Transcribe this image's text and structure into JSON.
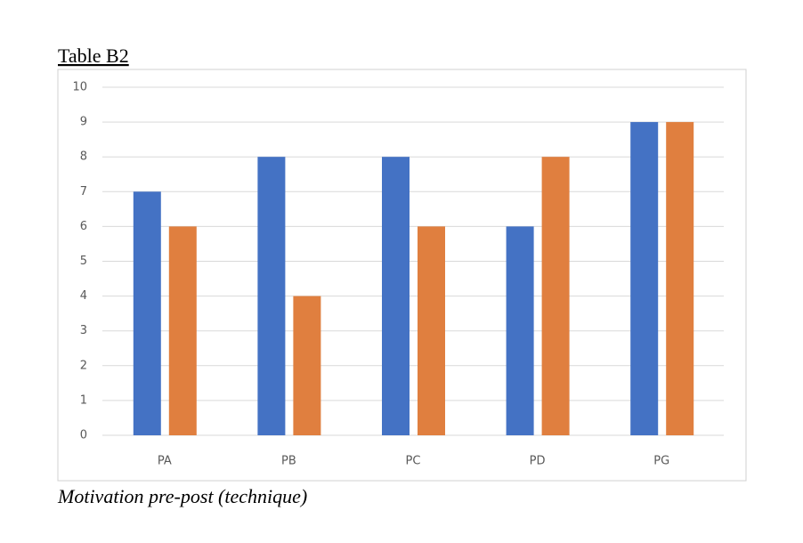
{
  "chart_data": {
    "type": "bar",
    "title": "Table B2",
    "caption": "Motivation pre-post (technique)",
    "categories": [
      "PA",
      "PB",
      "PC",
      "PD",
      "PG"
    ],
    "series": [
      {
        "color": "#4472c4",
        "values": [
          7,
          8,
          8,
          6,
          9
        ]
      },
      {
        "color": "#e07f3f",
        "values": [
          6,
          4,
          6,
          8,
          9
        ]
      }
    ],
    "ylim": [
      0,
      10
    ],
    "yticks": [
      0,
      1,
      2,
      3,
      4,
      5,
      6,
      7,
      8,
      9,
      10
    ],
    "grid": true
  }
}
